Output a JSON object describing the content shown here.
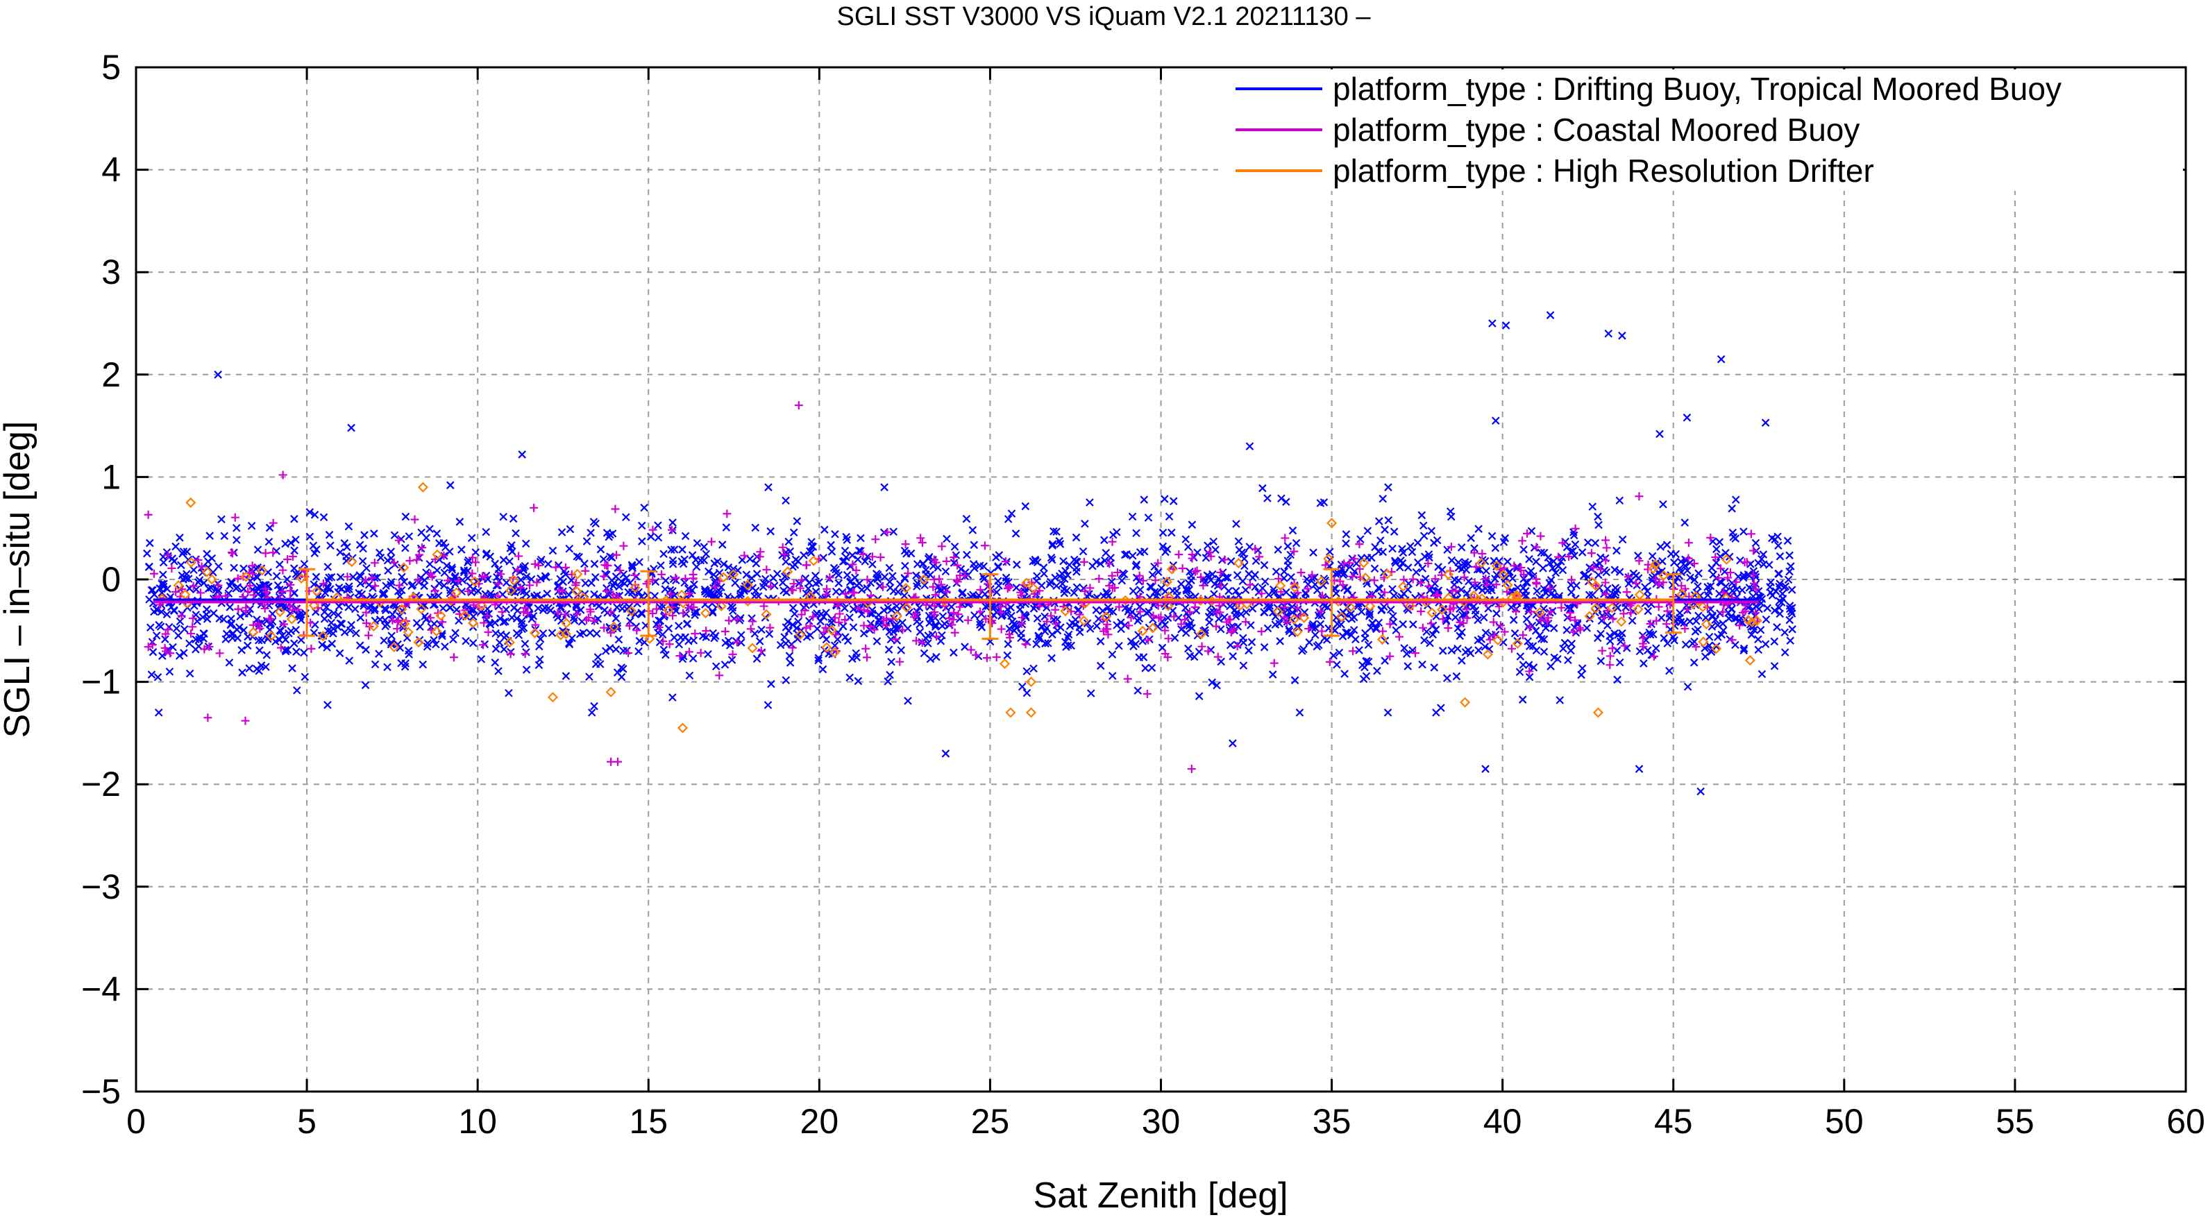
{
  "chart_data": {
    "type": "scatter",
    "title": "SGLI SST V3000 VS iQuam V2.1 20211130 –",
    "xlabel": "Sat Zenith [deg]",
    "ylabel": "SGLI – in–situ [deg]",
    "xlim": [
      0,
      60
    ],
    "ylim": [
      -5,
      5
    ],
    "xticks": [
      0,
      5,
      10,
      15,
      20,
      25,
      30,
      35,
      40,
      45,
      50,
      55,
      60
    ],
    "yticks": [
      -5,
      -4,
      -3,
      -2,
      -1,
      0,
      1,
      2,
      3,
      4,
      5
    ],
    "xtick_labels": [
      "0",
      "5",
      "10",
      "15",
      "20",
      "25",
      "30",
      "35",
      "40",
      "45",
      "50",
      "55",
      "60"
    ],
    "ytick_labels": [
      "−5",
      "−4",
      "−3",
      "−2",
      "−1",
      "0",
      "1",
      "2",
      "3",
      "4",
      "5"
    ],
    "grid": true,
    "legend_position": "top-right",
    "series": [
      {
        "name": "platform_type : Drifting Buoy, Tropical Moored Buoy",
        "color": "#0000ff",
        "marker": "x",
        "x_range": [
          0.3,
          48.5
        ],
        "bias": -0.2,
        "spread": 0.35,
        "mean_line": {
          "x": [
            0.5,
            47.5
          ],
          "y": [
            -0.2,
            -0.2
          ]
        },
        "outliers": [
          {
            "x": 2.4,
            "y": 2.0
          },
          {
            "x": 6.3,
            "y": 1.48
          },
          {
            "x": 9.2,
            "y": 0.92
          },
          {
            "x": 11.3,
            "y": 1.22
          },
          {
            "x": 32.6,
            "y": 1.3
          },
          {
            "x": 39.7,
            "y": 2.5
          },
          {
            "x": 40.1,
            "y": 2.48
          },
          {
            "x": 41.4,
            "y": 2.58
          },
          {
            "x": 43.1,
            "y": 2.4
          },
          {
            "x": 43.5,
            "y": 2.38
          },
          {
            "x": 46.4,
            "y": 2.15
          },
          {
            "x": 45.4,
            "y": 1.58
          },
          {
            "x": 47.7,
            "y": 1.53
          },
          {
            "x": 39.8,
            "y": 1.55
          },
          {
            "x": 44.6,
            "y": 1.42
          },
          {
            "x": 39.5,
            "y": -1.85
          },
          {
            "x": 44.0,
            "y": -1.85
          },
          {
            "x": 45.8,
            "y": -2.07
          },
          {
            "x": 32.1,
            "y": -1.6
          },
          {
            "x": 23.7,
            "y": -1.7
          }
        ]
      },
      {
        "name": "platform_type : Coastal Moored Buoy",
        "color": "#d000d0",
        "marker": "+",
        "x_range": [
          0.3,
          47.5
        ],
        "bias": -0.2,
        "spread": 0.3,
        "mean_line": {
          "x": [
            0.5,
            47.5
          ],
          "y": [
            -0.22,
            -0.22
          ]
        },
        "outliers": [
          {
            "x": 19.4,
            "y": 1.7
          },
          {
            "x": 4.3,
            "y": 1.02
          },
          {
            "x": 14.1,
            "y": -1.78
          },
          {
            "x": 13.9,
            "y": -1.78
          },
          {
            "x": 30.9,
            "y": -1.85
          },
          {
            "x": 2.1,
            "y": -1.35
          },
          {
            "x": 3.2,
            "y": -1.38
          },
          {
            "x": 1.0,
            "y": -0.72
          }
        ]
      },
      {
        "name": "platform_type : High Resolution Drifter",
        "color": "#ff8000",
        "marker": "diamond",
        "x_range": [
          0.5,
          47.5
        ],
        "bias": -0.2,
        "spread": 0.25,
        "mean_line": {
          "x": [
            5,
            45
          ],
          "y": [
            -0.2,
            -0.2
          ]
        },
        "error_bars": [
          {
            "x": 5,
            "y": -0.2,
            "low": -0.55,
            "high": 0.1
          },
          {
            "x": 15,
            "y": -0.22,
            "low": -0.55,
            "high": 0.08
          },
          {
            "x": 25,
            "y": -0.22,
            "low": -0.58,
            "high": 0.05
          },
          {
            "x": 35,
            "y": -0.22,
            "low": -0.55,
            "high": 0.1
          },
          {
            "x": 45,
            "y": -0.2,
            "low": -0.52,
            "high": 0.05
          }
        ],
        "outliers": [
          {
            "x": 1.6,
            "y": 0.75
          },
          {
            "x": 8.4,
            "y": 0.9
          },
          {
            "x": 13.9,
            "y": -1.1
          },
          {
            "x": 12.2,
            "y": -1.15
          },
          {
            "x": 16.0,
            "y": -1.45
          },
          {
            "x": 25.6,
            "y": -1.3
          },
          {
            "x": 26.2,
            "y": -1.3
          },
          {
            "x": 26.2,
            "y": -1.0
          },
          {
            "x": 42.8,
            "y": -1.3
          },
          {
            "x": 38.9,
            "y": -1.2
          },
          {
            "x": 35.0,
            "y": 0.55
          }
        ]
      }
    ]
  }
}
